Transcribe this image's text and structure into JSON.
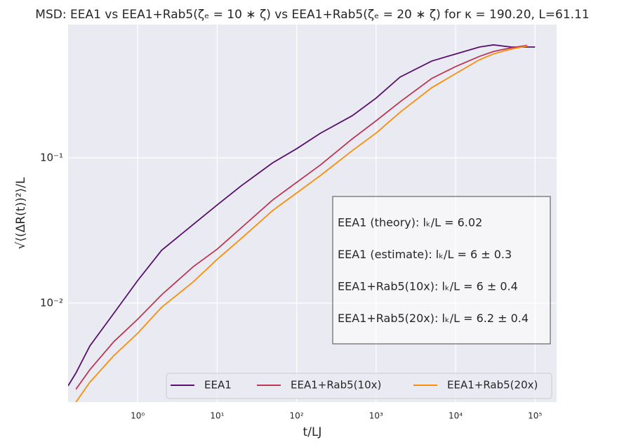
{
  "chart_data": {
    "type": "line",
    "title": "MSD: EEA1 vs EEA1+Rab5(ζₑ = 10 ∗ ζ) vs EEA1+Rab5(ζₑ = 20 ∗ ζ) for κ = 190.20, L=61.11",
    "x_label": "t/LJ",
    "y_label": "√⟨(ΔR(t))²⟩/L",
    "x": [
      0.133,
      0.167,
      0.25,
      0.5,
      1,
      2,
      5,
      10,
      20,
      50,
      100,
      200,
      500,
      1000,
      2000,
      5000,
      10000,
      20000,
      30000,
      50000,
      80000,
      100000
    ],
    "series": [
      {
        "name": "EEA1",
        "color": "#57106e",
        "values": [
          0.00269,
          0.0033,
          0.00507,
          0.0085,
          0.0143,
          0.0231,
          0.0348,
          0.0474,
          0.0641,
          0.0925,
          0.1156,
          0.148,
          0.195,
          0.258,
          0.36,
          0.464,
          0.519,
          0.58,
          0.6,
          0.58,
          0.58,
          0.58
        ]
      },
      {
        "name": "EEA1+Rab5(10x)",
        "color": "#bc3754",
        "values": [
          null,
          0.00255,
          0.00348,
          0.00542,
          0.00774,
          0.0114,
          0.0178,
          0.0235,
          0.0329,
          0.0513,
          0.0678,
          0.0895,
          0.135,
          0.18,
          0.243,
          0.352,
          0.425,
          0.5,
          0.54,
          0.573,
          0.595,
          null
        ]
      },
      {
        "name": "EEA1+Rab5(20x)",
        "color": "#f98e09",
        "values": [
          null,
          0.00208,
          0.00285,
          0.00434,
          0.0062,
          0.00935,
          0.014,
          0.02,
          0.0278,
          0.0434,
          0.0573,
          0.0757,
          0.112,
          0.148,
          0.206,
          0.304,
          0.38,
          0.474,
          0.52,
          0.561,
          0.59,
          null
        ]
      }
    ],
    "xscale": "log",
    "yscale": "log",
    "xlim": [
      0.133,
      187000
    ],
    "ylim": [
      0.00208,
      0.828
    ],
    "xticks": [
      {
        "value": 1,
        "label": "10⁰"
      },
      {
        "value": 10,
        "label": "10¹"
      },
      {
        "value": 100,
        "label": "10²"
      },
      {
        "value": 1000,
        "label": "10³"
      },
      {
        "value": 10000,
        "label": "10⁴"
      },
      {
        "value": 100000,
        "label": "10⁵"
      }
    ],
    "yticks": [
      {
        "value": 0.01,
        "label": "10⁻²"
      },
      {
        "value": 0.1,
        "label": "10⁻¹"
      }
    ],
    "grid": true,
    "legend": "lower right",
    "annotations": [
      "EEA1 (theory): lₖ/L = 6.02",
      "EEA1 (estimate): lₖ/L = 6 ± 0.3",
      "EEA1+Rab5(10x): lₖ/L = 6 ± 0.4",
      "EEA1+Rab5(20x): lₖ/L = 6.2 ± 0.4"
    ]
  }
}
